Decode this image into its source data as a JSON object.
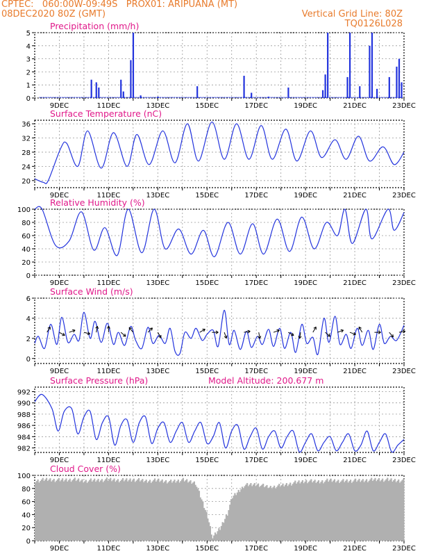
{
  "header": {
    "line1_left": "CPTEC:   060:00W-09:49S   PROX01: ARIPUANA (MT)",
    "line2_left": "08DEC2020 80Z (GMT)",
    "line2_right": "Vertical Grid Line: 80Z",
    "line3_right": "TQ0126L028"
  },
  "colors": {
    "header": "#e87b2c",
    "title": "#e0198a",
    "line": "#2233dd",
    "bar": "#2233dd",
    "cloud": "#b0b0b0",
    "grid": "#999999"
  },
  "x_ticks": [
    "9DEC",
    "11DEC",
    "13DEC",
    "15DEC",
    "17DEC",
    "19DEC",
    "21DEC",
    "23DEC"
  ],
  "chart_data": [
    {
      "type": "bar",
      "title": "Precipitation (mm/h)",
      "ylim": [
        0,
        5
      ],
      "yticks": [
        "0",
        "1",
        "2",
        "3",
        "4",
        "5"
      ],
      "peaks": [
        {
          "day": 10.3,
          "value": 1.4
        },
        {
          "day": 10.5,
          "value": 1.2
        },
        {
          "day": 10.6,
          "value": 0.8
        },
        {
          "day": 11.5,
          "value": 1.4
        },
        {
          "day": 11.6,
          "value": 0.5
        },
        {
          "day": 11.9,
          "value": 2.9
        },
        {
          "day": 12.0,
          "value": 5.0
        },
        {
          "day": 12.3,
          "value": 0.2
        },
        {
          "day": 13.0,
          "value": 0.1
        },
        {
          "day": 14.6,
          "value": 0.9
        },
        {
          "day": 16.5,
          "value": 1.7
        },
        {
          "day": 16.8,
          "value": 0.4
        },
        {
          "day": 17.5,
          "value": 0.1
        },
        {
          "day": 18.3,
          "value": 0.8
        },
        {
          "day": 19.7,
          "value": 0.6
        },
        {
          "day": 19.8,
          "value": 1.8
        },
        {
          "day": 19.9,
          "value": 5.0
        },
        {
          "day": 20.7,
          "value": 1.6
        },
        {
          "day": 20.8,
          "value": 5.0
        },
        {
          "day": 21.2,
          "value": 0.9
        },
        {
          "day": 21.6,
          "value": 4.0
        },
        {
          "day": 21.7,
          "value": 5.0
        },
        {
          "day": 21.9,
          "value": 0.7
        },
        {
          "day": 22.4,
          "value": 1.6
        },
        {
          "day": 22.7,
          "value": 2.4
        },
        {
          "day": 22.8,
          "value": 3.0
        },
        {
          "day": 22.9,
          "value": 1.2
        }
      ]
    },
    {
      "type": "line",
      "title": "Surface Temperature (nC)",
      "ylim": [
        18,
        37
      ],
      "yticks": [
        "20",
        "24",
        "28",
        "32",
        "36"
      ],
      "x": [
        8.0,
        8.35,
        8.55,
        9.05,
        9.3,
        9.75,
        10.15,
        10.7,
        11.2,
        11.75,
        12.15,
        12.65,
        13.2,
        13.7,
        14.2,
        14.65,
        15.2,
        15.7,
        16.2,
        16.7,
        17.2,
        17.65,
        18.2,
        18.65,
        19.2,
        19.65,
        20.2,
        20.65,
        21.15,
        21.6,
        22.15,
        22.6,
        23.0
      ],
      "y": [
        20.5,
        19.5,
        20.0,
        29.0,
        30.5,
        24.0,
        34.0,
        23.5,
        33.5,
        24.0,
        33.0,
        24.5,
        34.0,
        25.0,
        36.0,
        25.5,
        36.5,
        26.0,
        36.0,
        26.0,
        35.5,
        26.0,
        34.5,
        25.5,
        34.0,
        26.5,
        31.5,
        26.0,
        32.5,
        25.5,
        29.5,
        24.5,
        28.0
      ]
    },
    {
      "type": "line",
      "title": "Relative Humidity (%)",
      "ylim": [
        0,
        100
      ],
      "yticks": [
        "0",
        "20",
        "40",
        "60",
        "80",
        "100"
      ],
      "x": [
        8.0,
        8.3,
        8.85,
        9.4,
        9.9,
        10.4,
        10.85,
        11.35,
        11.8,
        12.35,
        12.85,
        13.3,
        13.85,
        14.35,
        14.85,
        15.3,
        15.85,
        16.35,
        16.85,
        17.3,
        17.85,
        18.35,
        18.85,
        19.35,
        19.85,
        20.3,
        20.6,
        20.9,
        21.45,
        21.7,
        22.35,
        22.6,
        23.0
      ],
      "y": [
        100,
        100,
        45,
        52,
        96,
        38,
        72,
        30,
        100,
        34,
        100,
        40,
        70,
        32,
        68,
        28,
        80,
        32,
        78,
        32,
        85,
        36,
        88,
        40,
        80,
        60,
        100,
        48,
        100,
        55,
        100,
        68,
        95
      ]
    },
    {
      "type": "line",
      "title": "Surface Wind (m/s)",
      "ylim": [
        -0.5,
        6
      ],
      "yticks": [
        "0",
        "2",
        "4",
        "6"
      ],
      "x": [
        8.0,
        8.15,
        8.4,
        8.65,
        8.9,
        9.1,
        9.35,
        9.6,
        9.8,
        10.0,
        10.25,
        10.45,
        10.7,
        10.95,
        11.2,
        11.4,
        11.65,
        11.9,
        12.1,
        12.35,
        12.6,
        12.8,
        13.05,
        13.3,
        13.5,
        13.7,
        13.9,
        14.1,
        14.35,
        14.55,
        14.8,
        15.0,
        15.25,
        15.45,
        15.7,
        15.9,
        16.1,
        16.35,
        16.6,
        16.8,
        17.05,
        17.25,
        17.5,
        17.7,
        17.95,
        18.15,
        18.4,
        18.6,
        18.85,
        19.05,
        19.3,
        19.5,
        19.75,
        19.95,
        20.2,
        20.4,
        20.65,
        20.85,
        21.1,
        21.3,
        21.55,
        21.75,
        22.0,
        22.2,
        22.45,
        22.7,
        23.0
      ],
      "y": [
        1.5,
        2.2,
        1.0,
        3.4,
        1.4,
        4.1,
        1.6,
        2.4,
        1.8,
        4.6,
        2.0,
        3.7,
        1.6,
        3.5,
        1.4,
        2.6,
        1.3,
        3.2,
        1.8,
        1.0,
        3.1,
        1.5,
        2.3,
        1.5,
        3.0,
        0.7,
        0.5,
        2.6,
        2.0,
        3.0,
        1.8,
        2.4,
        2.8,
        1.2,
        4.8,
        1.4,
        2.8,
        0.9,
        2.7,
        1.1,
        2.2,
        1.4,
        2.9,
        1.2,
        3.0,
        1.0,
        2.6,
        0.6,
        3.4,
        1.5,
        2.1,
        0.4,
        4.0,
        1.6,
        4.2,
        1.4,
        2.4,
        1.0,
        3.0,
        1.3,
        2.8,
        0.9,
        3.4,
        1.5,
        2.2,
        1.8,
        3.3
      ]
    },
    {
      "type": "line",
      "title": "Surface Pressure (hPa)",
      "annotation": "Model Altitude: 200.677 m",
      "ylim": [
        981.2,
        992.8
      ],
      "yticks": [
        "982",
        "984",
        "986",
        "988",
        "990",
        "992"
      ],
      "x": [
        8.0,
        8.3,
        8.7,
        8.95,
        9.2,
        9.5,
        9.75,
        10.0,
        10.25,
        10.5,
        10.75,
        11.0,
        11.25,
        11.5,
        11.75,
        12.0,
        12.25,
        12.5,
        12.75,
        13.0,
        13.25,
        13.5,
        13.75,
        14.0,
        14.25,
        14.5,
        14.75,
        15.0,
        15.25,
        15.5,
        15.75,
        16.0,
        16.25,
        16.5,
        16.75,
        17.0,
        17.25,
        17.5,
        17.75,
        18.0,
        18.25,
        18.5,
        18.75,
        19.0,
        19.25,
        19.5,
        19.75,
        20.0,
        20.25,
        20.5,
        20.75,
        21.0,
        21.25,
        21.5,
        21.75,
        22.0,
        22.25,
        22.5,
        22.75,
        23.0
      ],
      "y": [
        990.2,
        991.5,
        989.0,
        985.0,
        988.5,
        989.0,
        984.5,
        987.5,
        988.5,
        983.5,
        986.5,
        987.5,
        982.5,
        986.0,
        987.0,
        983.0,
        986.5,
        987.5,
        982.8,
        985.5,
        986.5,
        983.0,
        985.0,
        986.5,
        983.0,
        985.0,
        986.5,
        982.8,
        984.0,
        986.5,
        982.0,
        985.0,
        986.0,
        981.8,
        984.0,
        985.5,
        981.8,
        984.0,
        985.0,
        982.0,
        984.0,
        985.0,
        981.3,
        983.0,
        984.5,
        981.5,
        983.0,
        984.0,
        981.5,
        983.0,
        984.5,
        981.5,
        982.5,
        985.0,
        981.5,
        983.0,
        984.5,
        981.3,
        982.5,
        983.5
      ]
    },
    {
      "type": "bar",
      "title": "Cloud Cover (%)",
      "ylim": [
        0,
        100
      ],
      "yticks": [
        "0",
        "20",
        "40",
        "60",
        "80",
        "100"
      ],
      "x": [
        8.0,
        8.5,
        9.0,
        9.5,
        10.0,
        10.5,
        11.0,
        11.5,
        12.0,
        12.5,
        13.0,
        13.5,
        14.0,
        14.5,
        15.0,
        15.2,
        15.5,
        15.8,
        16.0,
        16.5,
        17.0,
        17.5,
        18.0,
        18.5,
        19.0,
        19.5,
        20.0,
        20.5,
        21.0,
        21.5,
        22.0,
        22.5,
        23.0
      ],
      "y": [
        95,
        97,
        96,
        97,
        95,
        96,
        97,
        96,
        97,
        95,
        96,
        94,
        96,
        92,
        40,
        8,
        22,
        45,
        70,
        88,
        90,
        85,
        88,
        92,
        95,
        94,
        96,
        95,
        95,
        96,
        97,
        96,
        95
      ]
    }
  ]
}
